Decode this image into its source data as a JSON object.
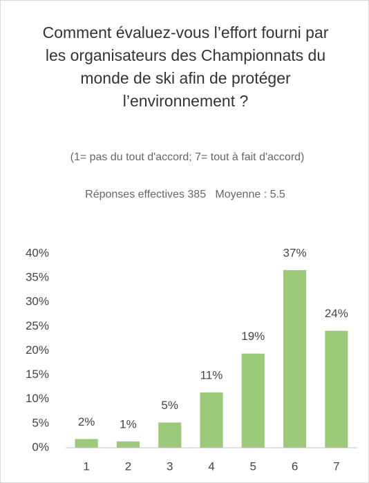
{
  "chart_data": {
    "type": "bar",
    "title": "Comment évaluez-vous l’effort fourni par les organisateurs des Championnats du monde de ski afin de protéger l’environnement ?",
    "subtitle": "(1= pas du tout d'accord; 7= tout à fait d'accord)",
    "note": "Réponses effectives 385   Moyenne : 5.5",
    "categories": [
      "1",
      "2",
      "3",
      "4",
      "5",
      "6",
      "7"
    ],
    "values": [
      1.8,
      1.3,
      5.2,
      11.4,
      19.4,
      36.6,
      24.1
    ],
    "value_labels": [
      "2%",
      "1%",
      "5%",
      "11%",
      "19%",
      "37%",
      "24%"
    ],
    "color": "#9bc97a",
    "ylim": [
      0,
      40
    ],
    "yticks": [
      {
        "value": 0,
        "label": "0%"
      },
      {
        "value": 5,
        "label": "5%"
      },
      {
        "value": 10,
        "label": "10%"
      },
      {
        "value": 15,
        "label": "15%"
      },
      {
        "value": 20,
        "label": "20%"
      },
      {
        "value": 25,
        "label": "25%"
      },
      {
        "value": 30,
        "label": "30%"
      },
      {
        "value": 35,
        "label": "35%"
      },
      {
        "value": 40,
        "label": "40%"
      }
    ],
    "grid": false
  }
}
